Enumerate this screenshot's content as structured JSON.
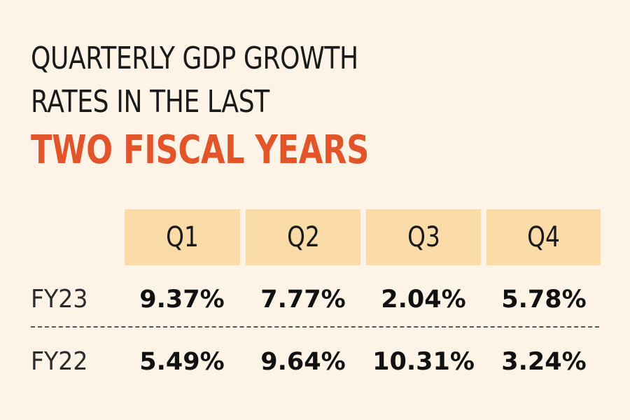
{
  "title": {
    "line1": "QUARTERLY GDP GROWTH",
    "line2": "RATES IN THE LAST",
    "line3": "TWO FISCAL YEARS",
    "accent_color": "#e2552b"
  },
  "colors": {
    "background": "#fdf3e6",
    "header_fill": "#fbdca9",
    "text": "#1a1a1a"
  },
  "chart_data": {
    "type": "table",
    "title": "QUARTERLY GDP GROWTH RATES IN THE LAST TWO FISCAL YEARS",
    "columns": [
      "Q1",
      "Q2",
      "Q3",
      "Q4"
    ],
    "rows": [
      {
        "label": "FY23",
        "values": [
          "9.37%",
          "7.77%",
          "2.04%",
          "5.78%"
        ]
      },
      {
        "label": "FY22",
        "values": [
          "5.49%",
          "9.64%",
          "10.31%",
          "3.24%"
        ]
      }
    ]
  }
}
